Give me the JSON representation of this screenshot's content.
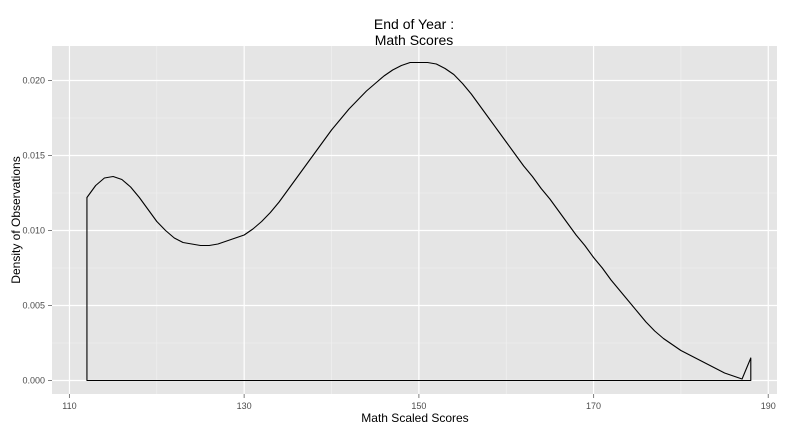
{
  "chart_data": {
    "type": "area",
    "title": [
      "End of Year :",
      "Math Scores"
    ],
    "xlabel": "Math Scaled Scores",
    "ylabel": "Density of Observations",
    "xlim": [
      108,
      191
    ],
    "ylim": [
      -0.0009,
      0.0223
    ],
    "x_ticks": [
      110,
      130,
      150,
      170,
      190
    ],
    "x_tick_labels": [
      "110",
      "130",
      "150",
      "170",
      "190"
    ],
    "y_ticks": [
      0,
      0.005,
      0.01,
      0.015,
      0.02
    ],
    "y_tick_labels": [
      "0.000",
      "0.005",
      "0.010",
      "0.015",
      "0.020"
    ],
    "grid": true,
    "series": [
      {
        "x": [
          112,
          113,
          114,
          115,
          116,
          117,
          118,
          119,
          120,
          121,
          122,
          123,
          124,
          125,
          126,
          127,
          128,
          129,
          130,
          131,
          132,
          133,
          134,
          135,
          136,
          137,
          138,
          139,
          140,
          141,
          142,
          143,
          144,
          145,
          146,
          147,
          148,
          149,
          150,
          151,
          152,
          153,
          154,
          155,
          156,
          157,
          158,
          159,
          160,
          161,
          162,
          163,
          164,
          165,
          166,
          167,
          168,
          169,
          170,
          171,
          172,
          173,
          174,
          175,
          176,
          177,
          178,
          179,
          180,
          181,
          182,
          183,
          184,
          185,
          186,
          187,
          188
        ],
        "y": [
          0.0122,
          0.013,
          0.0135,
          0.0136,
          0.0134,
          0.0129,
          0.0122,
          0.0114,
          0.0106,
          0.01,
          0.0095,
          0.0092,
          0.0091,
          0.009,
          0.009,
          0.0091,
          0.0093,
          0.0095,
          0.0097,
          0.0101,
          0.0106,
          0.0112,
          0.0119,
          0.0127,
          0.0135,
          0.0143,
          0.0151,
          0.0159,
          0.0167,
          0.0174,
          0.0181,
          0.0187,
          0.0193,
          0.0198,
          0.0203,
          0.0207,
          0.021,
          0.0212,
          0.0212,
          0.0212,
          0.0211,
          0.0208,
          0.0204,
          0.0198,
          0.0191,
          0.0183,
          0.0175,
          0.0167,
          0.0159,
          0.0151,
          0.0143,
          0.0136,
          0.0128,
          0.0121,
          0.0113,
          0.0105,
          0.0097,
          0.009,
          0.0082,
          0.0075,
          0.0067,
          0.006,
          0.0053,
          0.0046,
          0.0039,
          0.0033,
          0.0028,
          0.0024,
          0.002,
          0.0017,
          0.0014,
          0.0011,
          0.0008,
          0.0005,
          0.0003,
          0.0001,
          0.0015
        ]
      }
    ]
  },
  "colors": {
    "panel": "#e5e5e5",
    "grid_major": "#ffffff",
    "grid_minor": "#f2f2f2",
    "line": "#000000",
    "tick": "#7f7f7f"
  }
}
